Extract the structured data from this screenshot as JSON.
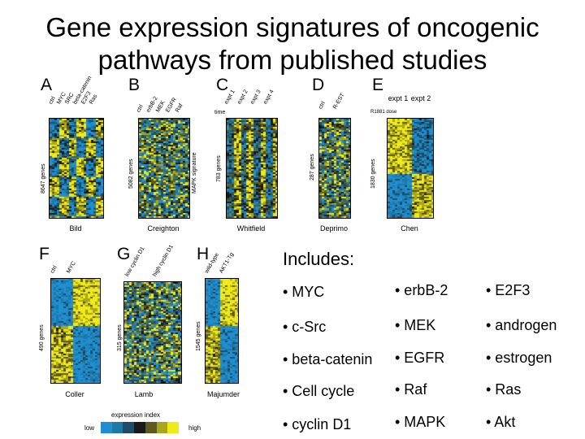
{
  "title": [
    "Gene expression signatures of oncogenic",
    "pathways from published studies"
  ],
  "panels": {
    "A": {
      "letter": "A",
      "author": "Bild",
      "genes": "8647 genes",
      "cols": [
        "ctrl",
        "MYC",
        "SRC",
        "beta-catenin",
        "E2F3",
        "Ras"
      ]
    },
    "B": {
      "letter": "B",
      "author": "Creighton",
      "genes": "5082 genes",
      "cols": [
        "ctrl",
        "erbB-2",
        "MEK",
        "EGFR",
        "Raf"
      ],
      "side": "MAPK signature"
    },
    "C": {
      "letter": "C",
      "author": "Whitfield",
      "genes": "783 genes",
      "cols": [
        "expt 1",
        "expt 2",
        "expt 3",
        "expt 4"
      ],
      "time": "time"
    },
    "D": {
      "letter": "D",
      "author": "Deprimo",
      "genes": "287 genes",
      "cols": [
        "ctrl",
        "R-EST"
      ]
    },
    "E": {
      "letter": "E",
      "author": "Chen",
      "genes": "1830 genes",
      "cols": [
        "expt 1",
        "expt 2"
      ],
      "dose": "R1881 dose"
    },
    "F": {
      "letter": "F",
      "author": "Coller",
      "genes": "490 genes",
      "cols": [
        "ctrl",
        "MYC"
      ]
    },
    "G": {
      "letter": "G",
      "author": "Lamb",
      "genes": "315 genes",
      "cols": [
        "low cyclin D1",
        "high cyclin D1"
      ]
    },
    "H": {
      "letter": "H",
      "author": "Majumder",
      "genes": "1545 genes",
      "cols": [
        "wild-type",
        "AKT1-Tg"
      ]
    }
  },
  "includes": {
    "heading": "Includes:",
    "col1": [
      "• MYC",
      "• c-Src",
      "• beta-catenin",
      "• Cell cycle",
      "• cyclin D1"
    ],
    "col2": [
      "• erbB-2",
      "• MEK",
      "• EGFR",
      "• Raf",
      "• MAPK"
    ],
    "col3": [
      "• E2F3",
      "• androgen",
      "• estrogen",
      "• Ras",
      "• Akt"
    ]
  },
  "legend": {
    "title": "expression index",
    "low": "low",
    "high": "high",
    "colors": [
      "#1f8fd1",
      "#1e79a8",
      "#1d4d66",
      "#1a1a1a",
      "#5c5a1e",
      "#a9a61c",
      "#f0ea18"
    ]
  }
}
